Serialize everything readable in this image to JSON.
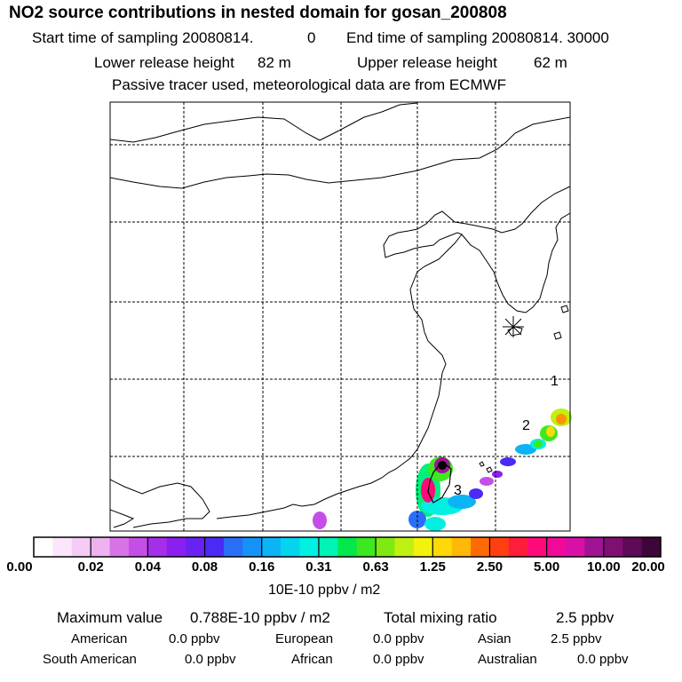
{
  "header": {
    "title": "NO2 source contributions in nested domain for gosan_200808",
    "start_label": "Start time of sampling 20080814.",
    "start_value": "0",
    "end_label": "End time of sampling 20080814. 30000",
    "lower_label": "Lower release height",
    "lower_value": "82 m",
    "upper_label": "Upper release height",
    "upper_value": "62 m",
    "note": "Passive tracer used, meteorological data are from ECMWF"
  },
  "chart_data": {
    "type": "heatmap",
    "title": "NO2 source contributions in nested domain for gosan_200808",
    "colorbar": {
      "ticks": [
        "0.00",
        "0.02",
        "0.04",
        "0.08",
        "0.16",
        "0.31",
        "0.63",
        "1.25",
        "2.50",
        "5.00",
        "10.00",
        "20.00"
      ],
      "unit": "10E-10 ppbv / m2"
    },
    "annotations": [
      "1",
      "2",
      "3"
    ],
    "grid": true,
    "max_value": "0.788E-10 ppbv / m2",
    "total_mixing_ratio": "2.5 ppbv"
  },
  "stats": {
    "max_label": "Maximum value",
    "max_value": "0.788E-10 ppbv / m2",
    "total_label": "Total mixing ratio",
    "total_value": "2.5 ppbv",
    "regions": [
      {
        "name": "American",
        "value": "0.0 ppbv"
      },
      {
        "name": "European",
        "value": "0.0 ppbv"
      },
      {
        "name": "Asian",
        "value": "2.5 ppbv"
      },
      {
        "name": "South American",
        "value": "0.0 ppbv"
      },
      {
        "name": "African",
        "value": "0.0 ppbv"
      },
      {
        "name": "Australian",
        "value": "0.0 ppbv"
      }
    ]
  },
  "colors": {
    "scale": [
      "#ffffff",
      "#fbe6fb",
      "#f5ccf5",
      "#eeb2f0",
      "#e493ea",
      "#d873e5",
      "#c54fe6",
      "#a52ee8",
      "#8b1ff0",
      "#6a22f3",
      "#4b2af5",
      "#3b49f7",
      "#2a6ef8",
      "#1592f7",
      "#0ab4f5",
      "#05d4ef",
      "#00f0e2",
      "#00f4b5",
      "#00f07e",
      "#00e84c",
      "#3de81f",
      "#7fea13",
      "#bff012",
      "#f2f20d",
      "#ffd80a",
      "#ffb708",
      "#ff9205",
      "#ff6a05",
      "#ff3f10",
      "#ff1c3c",
      "#ff0a78",
      "#f00a9a",
      "#d810a8",
      "#bf12ac",
      "#a01494",
      "#800f74",
      "#5e0a56",
      "#3e0638"
    ],
    "coast": "#000000",
    "grid": "#000000"
  }
}
